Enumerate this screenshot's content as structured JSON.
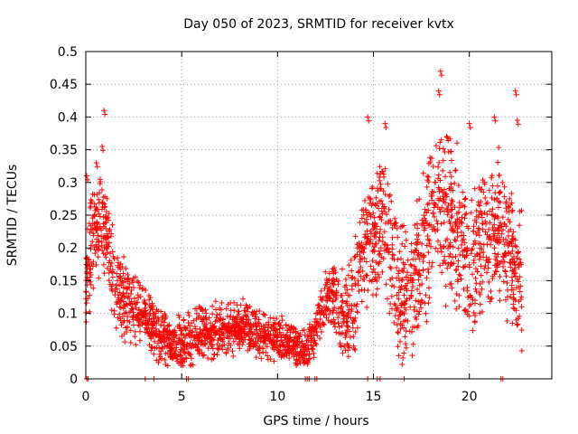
{
  "chart_data": {
    "type": "scatter",
    "title": "Day 050 of 2023, SRMTID for receiver kvtx",
    "xlabel": "GPS time / hours",
    "ylabel": "SRMTID / TECUs",
    "xlim": [
      0,
      24.3
    ],
    "ylim": [
      0,
      0.5
    ],
    "xticks": [
      0,
      5,
      10,
      15,
      20
    ],
    "xtick_labels": [
      "0",
      "5",
      "10",
      "15",
      "20"
    ],
    "yticks": [
      0,
      0.05,
      0.1,
      0.15,
      0.2,
      0.25,
      0.3,
      0.35,
      0.4,
      0.45,
      0.5
    ],
    "ytick_labels": [
      "0",
      "0.05",
      "0.1",
      "0.15",
      "0.2",
      "0.25",
      "0.3",
      "0.35",
      "0.4",
      "0.45",
      "0.5"
    ],
    "grid": true,
    "marker": "+",
    "series_color": "#ff0000",
    "series": [
      {
        "name": "SRMTID",
        "trend_points": [
          [
            0.0,
            0.14
          ],
          [
            0.3,
            0.2
          ],
          [
            0.6,
            0.22
          ],
          [
            0.9,
            0.25
          ],
          [
            1.2,
            0.18
          ],
          [
            1.5,
            0.15
          ],
          [
            2.0,
            0.12
          ],
          [
            2.5,
            0.11
          ],
          [
            3.0,
            0.1
          ],
          [
            3.4,
            0.08
          ],
          [
            3.8,
            0.06
          ],
          [
            4.5,
            0.06
          ],
          [
            5.0,
            0.05
          ],
          [
            6.0,
            0.07
          ],
          [
            7.0,
            0.075
          ],
          [
            8.0,
            0.08
          ],
          [
            9.0,
            0.07
          ],
          [
            10.0,
            0.06
          ],
          [
            11.0,
            0.05
          ],
          [
            11.6,
            0.045
          ],
          [
            12.0,
            0.08
          ],
          [
            12.5,
            0.12
          ],
          [
            13.0,
            0.13
          ],
          [
            13.5,
            0.09
          ],
          [
            14.0,
            0.12
          ],
          [
            14.5,
            0.2
          ],
          [
            15.0,
            0.22
          ],
          [
            15.5,
            0.24
          ],
          [
            16.0,
            0.18
          ],
          [
            16.5,
            0.12
          ],
          [
            17.0,
            0.13
          ],
          [
            17.5,
            0.2
          ],
          [
            18.0,
            0.24
          ],
          [
            18.5,
            0.27
          ],
          [
            19.0,
            0.24
          ],
          [
            19.5,
            0.21
          ],
          [
            20.0,
            0.18
          ],
          [
            20.5,
            0.2
          ],
          [
            21.0,
            0.22
          ],
          [
            21.5,
            0.24
          ],
          [
            22.0,
            0.2
          ],
          [
            22.5,
            0.15
          ]
        ],
        "spread": [
          [
            0.0,
            0.1
          ],
          [
            1.5,
            0.08
          ],
          [
            3.0,
            0.05
          ],
          [
            5.0,
            0.05
          ],
          [
            11.7,
            0.04
          ],
          [
            12.5,
            0.05
          ],
          [
            14.0,
            0.1
          ],
          [
            16.0,
            0.12
          ],
          [
            18.5,
            0.16
          ],
          [
            20.0,
            0.13
          ],
          [
            22.5,
            0.12
          ]
        ],
        "peak_points": [
          [
            0.05,
            0.31
          ],
          [
            0.55,
            0.33
          ],
          [
            0.95,
            0.41
          ],
          [
            0.85,
            0.355
          ],
          [
            14.7,
            0.4
          ],
          [
            15.6,
            0.39
          ],
          [
            18.5,
            0.47
          ],
          [
            18.4,
            0.44
          ],
          [
            20.0,
            0.39
          ],
          [
            21.3,
            0.4
          ],
          [
            22.4,
            0.44
          ],
          [
            22.5,
            0.395
          ]
        ],
        "zero_points": [
          0.05,
          0.12,
          3.1,
          3.55,
          5.25,
          5.35,
          11.45,
          11.55,
          11.65,
          11.95,
          12.05,
          14.7,
          15.2,
          15.35,
          16.6,
          21.65,
          21.75
        ],
        "hour_start": 0.0,
        "hour_end": 22.75,
        "point_count": 2600
      }
    ]
  }
}
